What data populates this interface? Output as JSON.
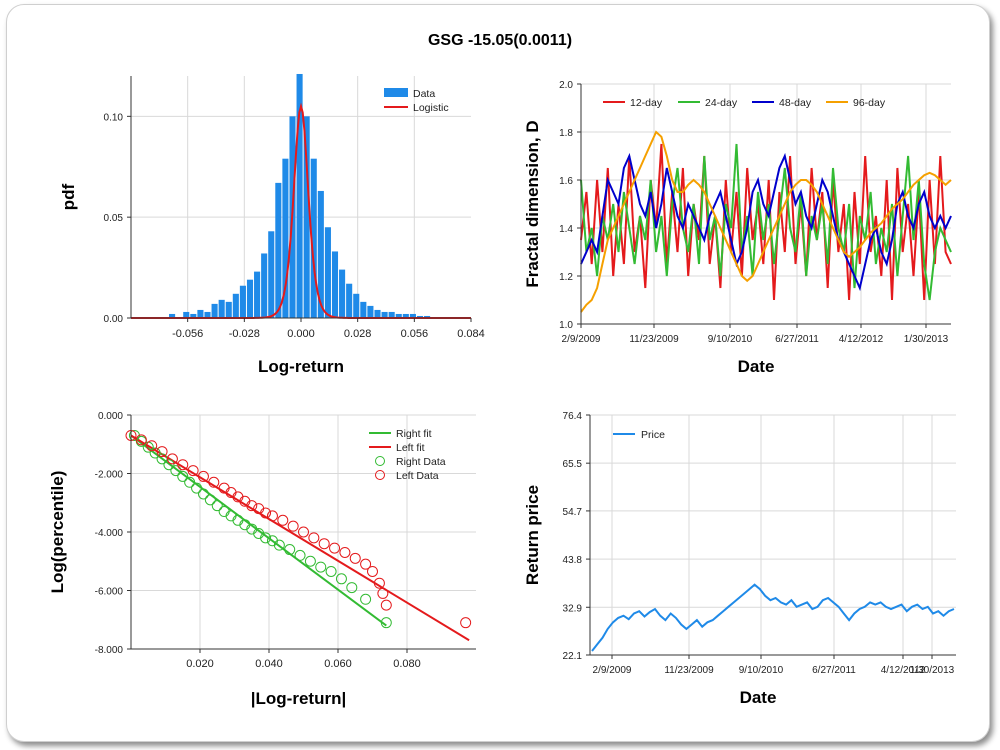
{
  "title": "GSG -15.05(0.0011)",
  "chart_data": [
    {
      "id": "hist",
      "type": "bar",
      "xlabel": "Log-return",
      "ylabel": "pdf",
      "xlim": [
        -0.084,
        0.084
      ],
      "ylim": [
        0.0,
        0.12
      ],
      "xticks": [
        "-0.056",
        "-0.028",
        "0.000",
        "0.028",
        "0.056",
        "0.084"
      ],
      "yticks": [
        "0.00",
        "0.05",
        "0.10"
      ],
      "legend": [
        "Data",
        "Logistic"
      ],
      "bin_width": 0.0035,
      "bin_centers": [
        -0.0637,
        -0.0567,
        -0.0532,
        -0.0497,
        -0.0462,
        -0.0427,
        -0.0392,
        -0.0357,
        -0.0322,
        -0.0287,
        -0.0252,
        -0.0217,
        -0.0182,
        -0.0147,
        -0.0112,
        -0.0077,
        -0.0042,
        -0.0007,
        0.0028,
        0.0063,
        0.0098,
        0.0133,
        0.0168,
        0.0203,
        0.0238,
        0.0273,
        0.0308,
        0.0343,
        0.0378,
        0.0413,
        0.0448,
        0.0483,
        0.0518,
        0.0553,
        0.0588,
        0.0623
      ],
      "values": [
        0.002,
        0.003,
        0.002,
        0.004,
        0.003,
        0.007,
        0.009,
        0.008,
        0.012,
        0.016,
        0.019,
        0.023,
        0.032,
        0.043,
        0.067,
        0.079,
        0.1,
        0.121,
        0.1,
        0.079,
        0.063,
        0.045,
        0.033,
        0.024,
        0.017,
        0.012,
        0.008,
        0.006,
        0.004,
        0.003,
        0.003,
        0.002,
        0.002,
        0.002,
        0.001,
        0.001
      ],
      "logistic": {
        "mu": 0.0,
        "s": 0.0024,
        "scale": 0.105
      }
    },
    {
      "id": "fractal",
      "type": "line",
      "xlabel": "Date",
      "ylabel": "Fractal dimension, D",
      "ylim": [
        1.0,
        2.0
      ],
      "xticks": [
        "2/9/2009",
        "11/23/2009",
        "9/10/2010",
        "6/27/2011",
        "4/12/2012",
        "1/30/2013"
      ],
      "yticks": [
        "1.0",
        "1.2",
        "1.4",
        "1.6",
        "1.8",
        "2.0"
      ],
      "series": [
        {
          "name": "12-day",
          "color": "#e41a1c",
          "values": [
            1.35,
            1.55,
            1.25,
            1.6,
            1.3,
            1.65,
            1.2,
            1.5,
            1.25,
            1.7,
            1.3,
            1.45,
            1.15,
            1.6,
            1.4,
            1.75,
            1.25,
            1.55,
            1.3,
            1.65,
            1.2,
            1.5,
            1.35,
            1.7,
            1.25,
            1.45,
            1.15,
            1.6,
            1.3,
            1.55,
            1.2,
            1.65,
            1.35,
            1.5,
            1.25,
            1.6,
            1.1,
            1.55,
            1.3,
            1.7,
            1.25,
            1.5,
            1.2,
            1.65,
            1.35,
            1.55,
            1.15,
            1.6,
            1.3,
            1.5,
            1.1,
            1.55,
            1.25,
            1.7,
            1.3,
            1.45,
            1.2,
            1.6,
            1.1,
            1.65,
            1.3,
            1.5,
            1.2,
            1.55,
            1.1,
            1.6,
            1.25,
            1.7,
            1.3,
            1.25
          ]
        },
        {
          "name": "24-day",
          "color": "#33bb33",
          "values": [
            1.6,
            1.3,
            1.4,
            1.2,
            1.45,
            1.35,
            1.5,
            1.3,
            1.55,
            1.4,
            1.25,
            1.45,
            1.35,
            1.6,
            1.3,
            1.45,
            1.2,
            1.5,
            1.65,
            1.4,
            1.3,
            1.5,
            1.25,
            1.7,
            1.35,
            1.45,
            1.2,
            1.5,
            1.4,
            1.75,
            1.3,
            1.45,
            1.2,
            1.55,
            1.35,
            1.5,
            1.25,
            1.45,
            1.65,
            1.4,
            1.3,
            1.55,
            1.2,
            1.45,
            1.35,
            1.5,
            1.25,
            1.65,
            1.4,
            1.3,
            1.5,
            1.15,
            1.45,
            1.35,
            1.55,
            1.25,
            1.4,
            1.3,
            1.5,
            1.2,
            1.45,
            1.7,
            1.35,
            1.6,
            1.25,
            1.1,
            1.3,
            1.4,
            1.35,
            1.3
          ]
        },
        {
          "name": "48-day",
          "color": "#0000cc",
          "values": [
            1.25,
            1.3,
            1.35,
            1.3,
            1.45,
            1.6,
            1.55,
            1.5,
            1.65,
            1.7,
            1.6,
            1.5,
            1.45,
            1.55,
            1.4,
            1.5,
            1.65,
            1.55,
            1.45,
            1.4,
            1.5,
            1.45,
            1.4,
            1.35,
            1.45,
            1.5,
            1.55,
            1.45,
            1.35,
            1.25,
            1.3,
            1.4,
            1.55,
            1.6,
            1.5,
            1.45,
            1.55,
            1.65,
            1.7,
            1.6,
            1.5,
            1.55,
            1.45,
            1.4,
            1.5,
            1.6,
            1.55,
            1.45,
            1.35,
            1.3,
            1.25,
            1.2,
            1.15,
            1.25,
            1.35,
            1.4,
            1.3,
            1.25,
            1.35,
            1.5,
            1.55,
            1.45,
            1.4,
            1.5,
            1.55,
            1.45,
            1.4,
            1.45,
            1.4,
            1.45
          ]
        },
        {
          "name": "96-day",
          "color": "#f5a000",
          "values": [
            1.05,
            1.08,
            1.1,
            1.15,
            1.25,
            1.35,
            1.4,
            1.45,
            1.5,
            1.55,
            1.6,
            1.65,
            1.7,
            1.75,
            1.8,
            1.78,
            1.7,
            1.6,
            1.55,
            1.55,
            1.58,
            1.6,
            1.58,
            1.55,
            1.5,
            1.45,
            1.4,
            1.35,
            1.3,
            1.25,
            1.2,
            1.18,
            1.2,
            1.25,
            1.3,
            1.35,
            1.4,
            1.45,
            1.5,
            1.55,
            1.58,
            1.6,
            1.6,
            1.58,
            1.55,
            1.5,
            1.45,
            1.4,
            1.35,
            1.3,
            1.28,
            1.3,
            1.32,
            1.35,
            1.38,
            1.4,
            1.42,
            1.45,
            1.48,
            1.5,
            1.52,
            1.55,
            1.58,
            1.6,
            1.62,
            1.63,
            1.62,
            1.6,
            1.58,
            1.6
          ]
        }
      ]
    },
    {
      "id": "tails",
      "type": "scatter",
      "xlabel": "|Log-return|",
      "ylabel": "Log(percentile)",
      "xlim": [
        0.0,
        0.1
      ],
      "ylim": [
        -8.0,
        0.0
      ],
      "xticks": [
        "0.020",
        "0.040",
        "0.060",
        "0.080"
      ],
      "yticks": [
        "0.000",
        "-2.000",
        "-4.000",
        "-6.000",
        "-8.000"
      ],
      "series": [
        {
          "name": "Right fit",
          "color": "#33bb33",
          "line": [
            [
              0.0,
              -0.7
            ],
            [
              0.074,
              -7.2
            ]
          ]
        },
        {
          "name": "Left fit",
          "color": "#e41a1c",
          "line": [
            [
              0.0,
              -0.7
            ],
            [
              0.098,
              -7.7
            ]
          ]
        },
        {
          "name": "Right Data",
          "color": "#33bb33",
          "points": [
            [
              0.001,
              -0.7
            ],
            [
              0.003,
              -0.9
            ],
            [
              0.005,
              -1.1
            ],
            [
              0.007,
              -1.3
            ],
            [
              0.009,
              -1.5
            ],
            [
              0.011,
              -1.7
            ],
            [
              0.013,
              -1.9
            ],
            [
              0.015,
              -2.1
            ],
            [
              0.017,
              -2.3
            ],
            [
              0.019,
              -2.5
            ],
            [
              0.021,
              -2.7
            ],
            [
              0.023,
              -2.9
            ],
            [
              0.025,
              -3.1
            ],
            [
              0.027,
              -3.3
            ],
            [
              0.029,
              -3.45
            ],
            [
              0.031,
              -3.6
            ],
            [
              0.033,
              -3.75
            ],
            [
              0.035,
              -3.9
            ],
            [
              0.037,
              -4.05
            ],
            [
              0.039,
              -4.2
            ],
            [
              0.041,
              -4.3
            ],
            [
              0.043,
              -4.45
            ],
            [
              0.046,
              -4.6
            ],
            [
              0.049,
              -4.8
            ],
            [
              0.052,
              -5.0
            ],
            [
              0.055,
              -5.2
            ],
            [
              0.058,
              -5.35
            ],
            [
              0.061,
              -5.6
            ],
            [
              0.064,
              -5.9
            ],
            [
              0.068,
              -6.3
            ],
            [
              0.074,
              -7.1
            ]
          ]
        },
        {
          "name": "Left Data",
          "color": "#e41a1c",
          "points": [
            [
              0.0,
              -0.7
            ],
            [
              0.003,
              -0.85
            ],
            [
              0.006,
              -1.05
            ],
            [
              0.009,
              -1.25
            ],
            [
              0.012,
              -1.5
            ],
            [
              0.015,
              -1.7
            ],
            [
              0.018,
              -1.9
            ],
            [
              0.021,
              -2.1
            ],
            [
              0.024,
              -2.3
            ],
            [
              0.027,
              -2.5
            ],
            [
              0.029,
              -2.65
            ],
            [
              0.031,
              -2.8
            ],
            [
              0.033,
              -2.95
            ],
            [
              0.035,
              -3.1
            ],
            [
              0.037,
              -3.2
            ],
            [
              0.039,
              -3.35
            ],
            [
              0.041,
              -3.45
            ],
            [
              0.044,
              -3.6
            ],
            [
              0.047,
              -3.8
            ],
            [
              0.05,
              -4.0
            ],
            [
              0.053,
              -4.2
            ],
            [
              0.056,
              -4.4
            ],
            [
              0.059,
              -4.55
            ],
            [
              0.062,
              -4.7
            ],
            [
              0.065,
              -4.9
            ],
            [
              0.068,
              -5.1
            ],
            [
              0.07,
              -5.35
            ],
            [
              0.072,
              -5.75
            ],
            [
              0.073,
              -6.1
            ],
            [
              0.074,
              -6.5
            ],
            [
              0.097,
              -7.1
            ]
          ]
        }
      ]
    },
    {
      "id": "price",
      "type": "line",
      "xlabel": "Date",
      "ylabel": "Return price",
      "ylim": [
        22.1,
        76.4
      ],
      "xticks": [
        "2/9/2009",
        "11/23/2009",
        "9/10/2010",
        "6/27/2011",
        "4/12/2012",
        "1/30/2013"
      ],
      "yticks": [
        "22.1",
        "32.9",
        "43.8",
        "54.7",
        "65.5",
        "76.4"
      ],
      "series": [
        {
          "name": "Price",
          "color": "#1f8ae8",
          "values": [
            23.0,
            24.5,
            26.0,
            28.0,
            29.5,
            30.5,
            31.0,
            30.2,
            31.5,
            32.0,
            30.8,
            31.8,
            32.5,
            31.0,
            30.0,
            31.5,
            30.5,
            29.0,
            28.0,
            29.0,
            30.0,
            28.5,
            29.5,
            30.0,
            31.0,
            32.0,
            33.0,
            34.0,
            35.0,
            36.0,
            37.0,
            38.0,
            37.0,
            35.5,
            34.5,
            35.0,
            34.0,
            33.5,
            34.5,
            33.0,
            33.5,
            34.0,
            32.5,
            33.0,
            34.5,
            35.0,
            34.0,
            33.0,
            31.5,
            30.0,
            31.5,
            32.5,
            33.0,
            34.0,
            33.5,
            34.0,
            33.0,
            32.5,
            33.0,
            33.5,
            32.0,
            33.0,
            33.5,
            32.5,
            33.0,
            31.5,
            32.0,
            31.0,
            32.0,
            32.5
          ]
        }
      ]
    }
  ]
}
